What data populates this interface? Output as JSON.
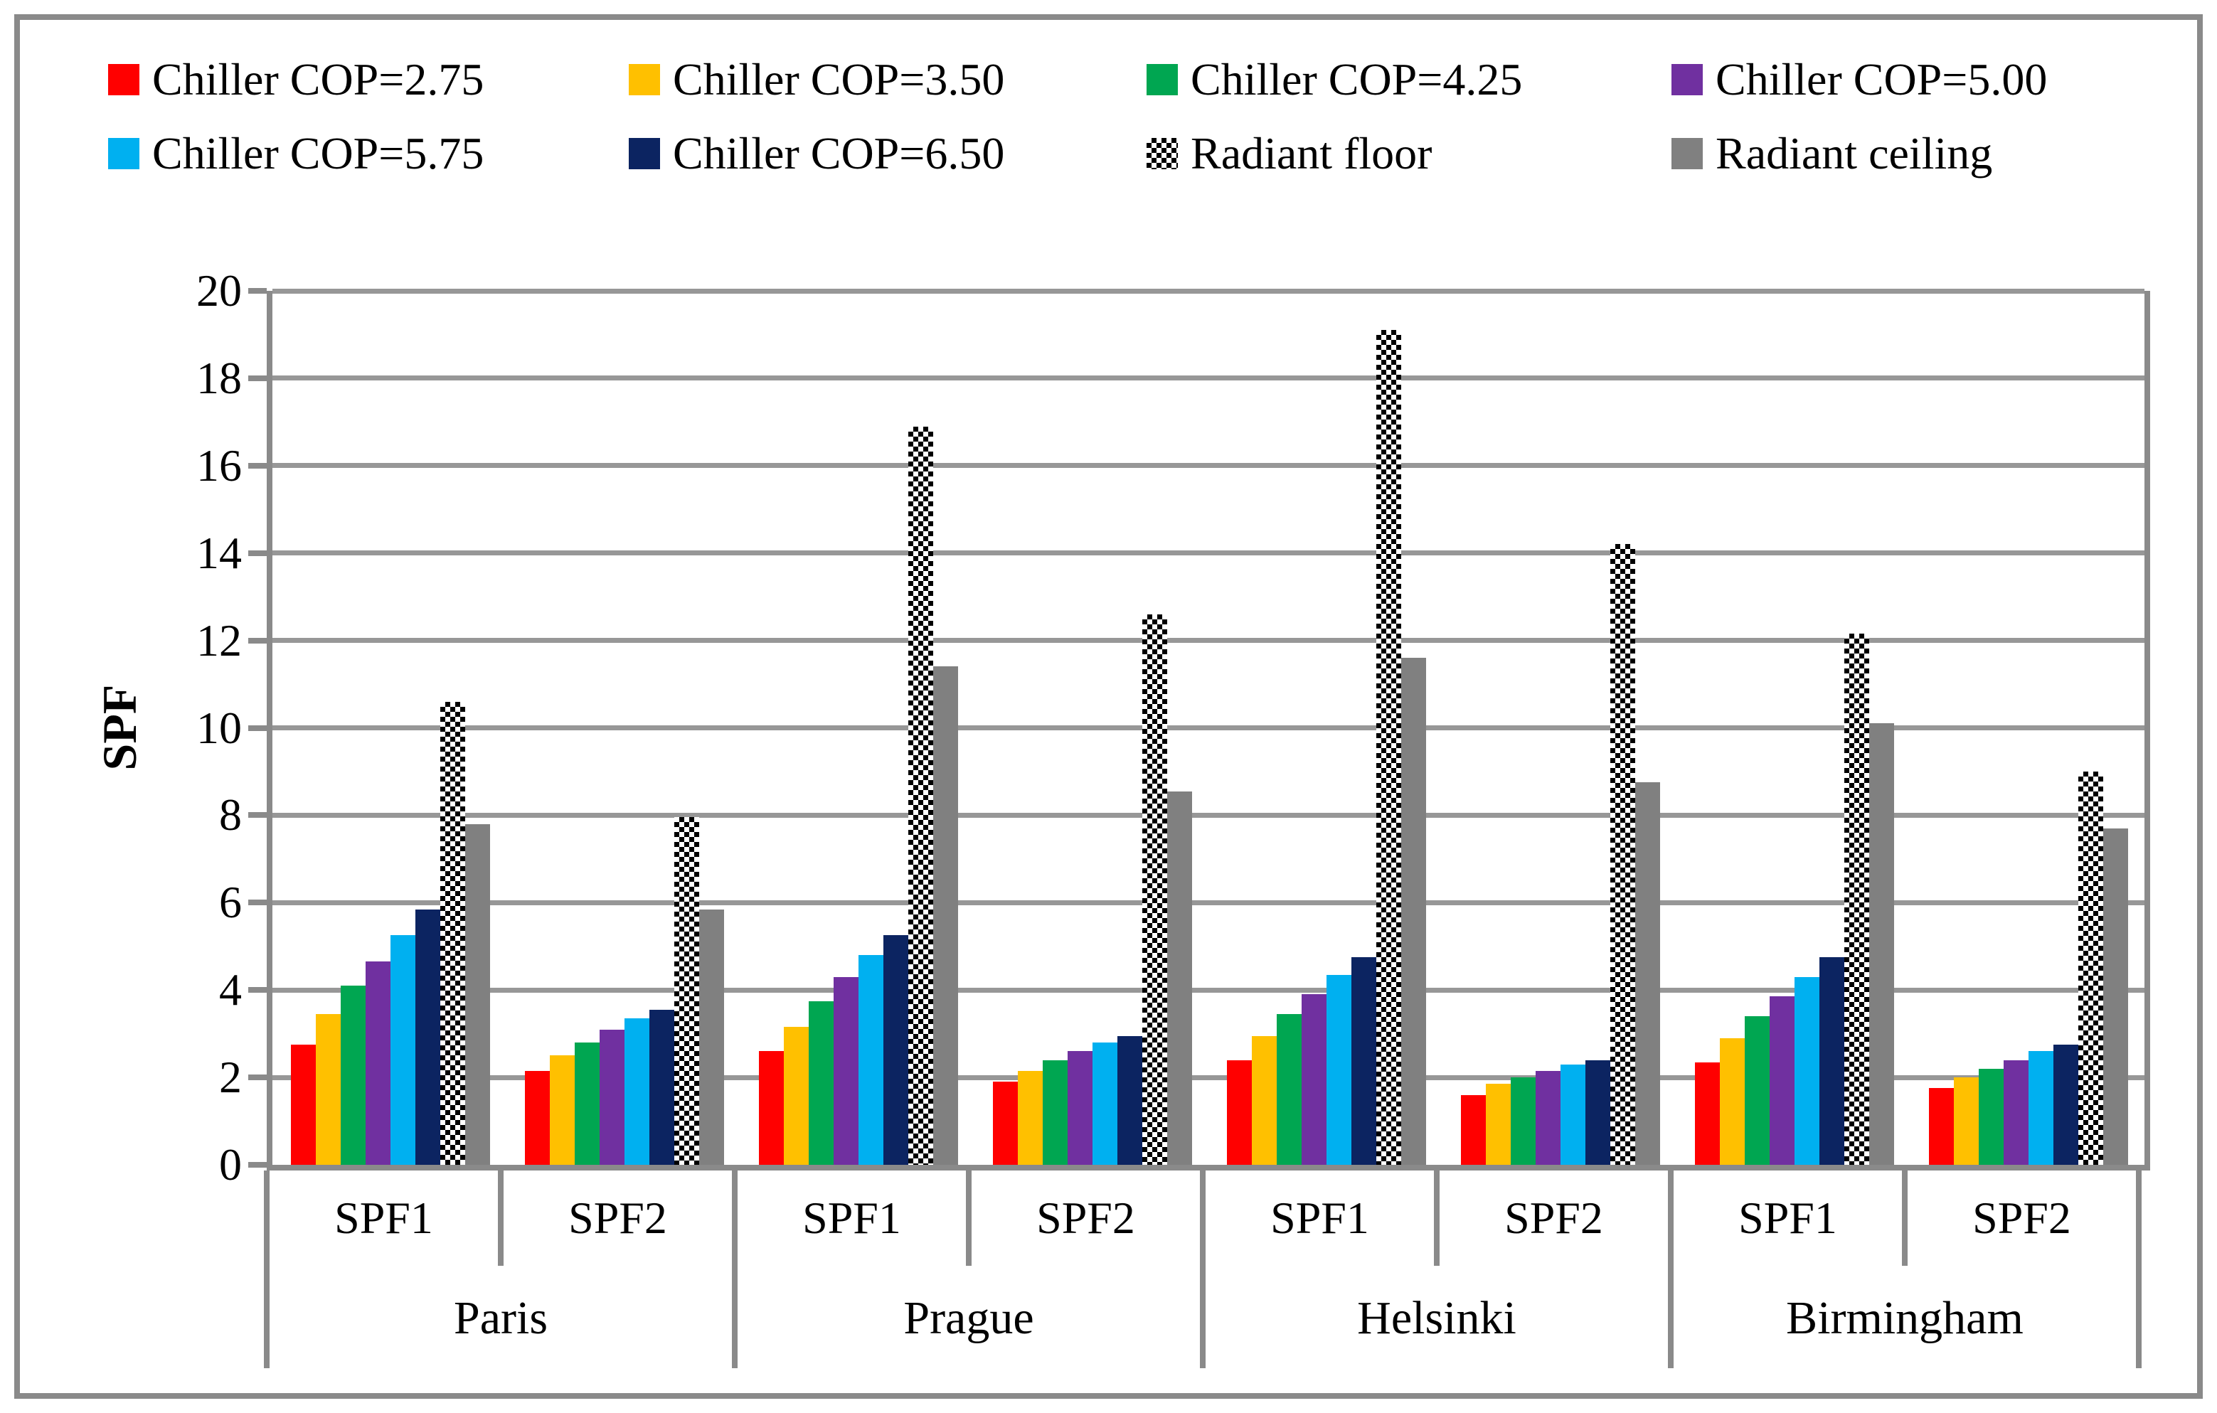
{
  "figure": {
    "background": "#FFFFFF",
    "border_color": "#8A8A8A"
  },
  "legend": {
    "items": [
      {
        "label": "Chiller COP=2.75",
        "color": "#FF0000",
        "pattern": "solid"
      },
      {
        "label": "Chiller COP=3.50",
        "color": "#FFC000",
        "pattern": "solid"
      },
      {
        "label": "Chiller COP=4.25",
        "color": "#00A651",
        "pattern": "solid"
      },
      {
        "label": "Chiller COP=5.00",
        "color": "#7030A0",
        "pattern": "solid"
      },
      {
        "label": "Chiller COP=5.75",
        "color": "#00B0F0",
        "pattern": "solid"
      },
      {
        "label": "Chiller COP=6.50",
        "color": "#0C2461",
        "pattern": "solid"
      },
      {
        "label": "Radiant floor",
        "color": "#000000",
        "pattern": "checker"
      },
      {
        "label": "Radiant ceiling",
        "color": "#808080",
        "pattern": "solid"
      }
    ]
  },
  "chart_data": {
    "type": "bar",
    "title": "",
    "xlabel": "",
    "ylabel": "SPF",
    "ylim": [
      0,
      20
    ],
    "ytick_step": 2,
    "ytick_labels": [
      "0",
      "2",
      "4",
      "6",
      "8",
      "10",
      "12",
      "14",
      "16",
      "18",
      "20"
    ],
    "grid": true,
    "legend_position": "top",
    "columns": [
      "Paris SPF1",
      "Paris SPF2",
      "Prague SPF1",
      "Prague SPF2",
      "Helsinki SPF1",
      "Helsinki SPF2",
      "Birmingham SPF1",
      "Birmingham SPF2"
    ],
    "group_labels": [
      "SPF1",
      "SPF2",
      "SPF1",
      "SPF2",
      "SPF1",
      "SPF2",
      "SPF1",
      "SPF2"
    ],
    "city_labels": [
      "Paris",
      "Prague",
      "Helsinki",
      "Birmingham"
    ],
    "series": [
      {
        "name": "Chiller COP=2.75",
        "color": "#FF0000",
        "pattern": "solid",
        "values": [
          2.75,
          2.15,
          2.6,
          1.9,
          2.4,
          1.6,
          2.35,
          1.75
        ]
      },
      {
        "name": "Chiller COP=3.50",
        "color": "#FFC000",
        "pattern": "solid",
        "values": [
          3.45,
          2.5,
          3.15,
          2.15,
          2.95,
          1.85,
          2.9,
          2.0
        ]
      },
      {
        "name": "Chiller COP=4.25",
        "color": "#00A651",
        "pattern": "solid",
        "values": [
          4.1,
          2.8,
          3.75,
          2.4,
          3.45,
          2.0,
          3.4,
          2.2
        ]
      },
      {
        "name": "Chiller COP=5.00",
        "color": "#7030A0",
        "pattern": "solid",
        "values": [
          4.65,
          3.1,
          4.3,
          2.6,
          3.9,
          2.15,
          3.85,
          2.4
        ]
      },
      {
        "name": "Chiller COP=5.75",
        "color": "#00B0F0",
        "pattern": "solid",
        "values": [
          5.25,
          3.35,
          4.8,
          2.8,
          4.35,
          2.3,
          4.3,
          2.6
        ]
      },
      {
        "name": "Chiller COP=6.50",
        "color": "#0C2461",
        "pattern": "solid",
        "values": [
          5.85,
          3.55,
          5.25,
          2.95,
          4.75,
          2.4,
          4.75,
          2.75
        ]
      },
      {
        "name": "Radiant floor",
        "color": "#000000",
        "pattern": "checker",
        "values": [
          10.6,
          7.95,
          16.9,
          12.6,
          19.1,
          14.2,
          12.15,
          9.0
        ]
      },
      {
        "name": "Radiant ceiling",
        "color": "#808080",
        "pattern": "solid",
        "values": [
          7.8,
          5.85,
          11.4,
          8.55,
          11.6,
          8.75,
          10.1,
          7.7
        ]
      }
    ]
  }
}
